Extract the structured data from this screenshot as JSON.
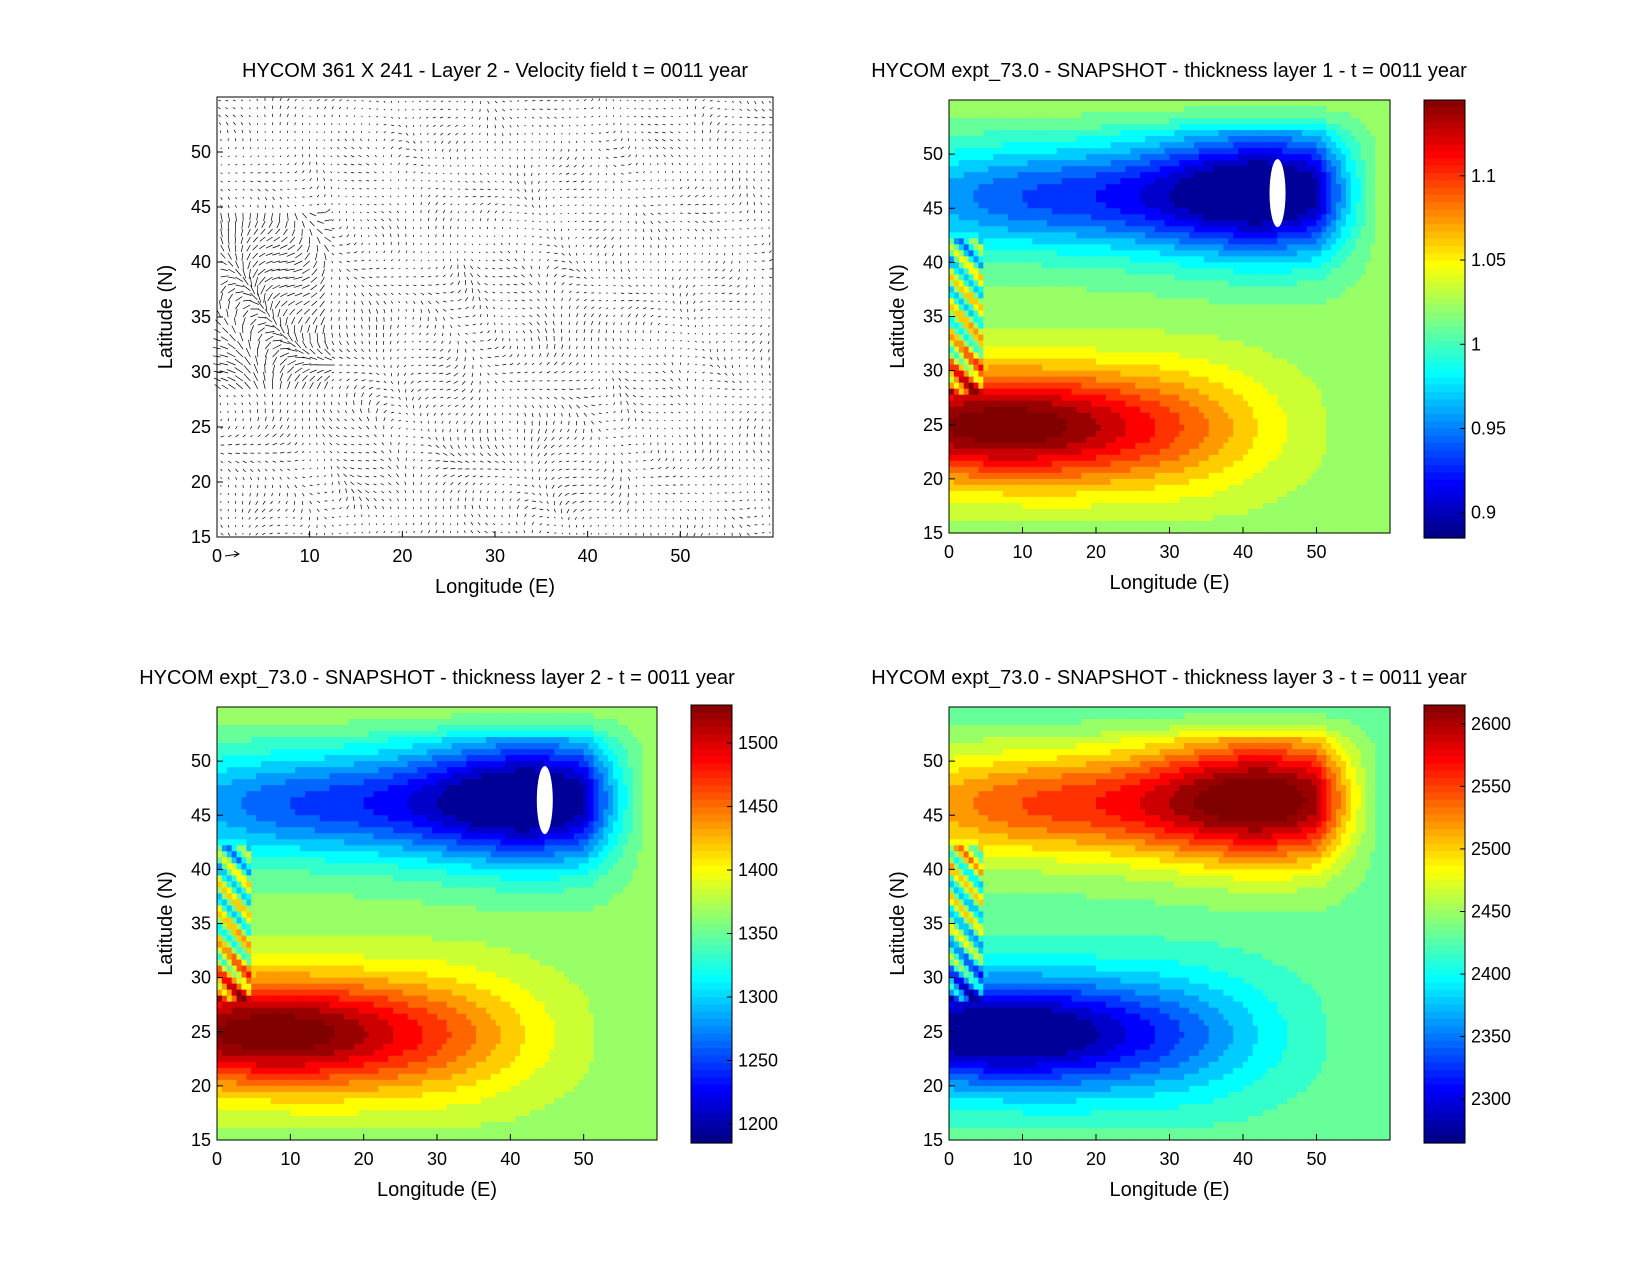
{
  "chart_data": [
    {
      "type": "quiver",
      "title": "HYCOM 361 X 241 - Layer 2 - Velocity field  t = 0011 year",
      "xlabel": "Longitude (E)",
      "ylabel": "Latitude (N)",
      "xlim": [
        0,
        60
      ],
      "ylim": [
        15,
        55
      ],
      "xticks": [
        0,
        10,
        20,
        30,
        40,
        50
      ],
      "yticks": [
        15,
        20,
        25,
        30,
        35,
        40,
        45,
        50
      ],
      "grid": false,
      "field": "velocity"
    },
    {
      "type": "contour",
      "title": "HYCOM expt_73.0 - SNAPSHOT - thickness layer 1 - t = 0011 year",
      "xlabel": "Longitude (E)",
      "ylabel": "Latitude (N)",
      "xlim": [
        0,
        60
      ],
      "ylim": [
        15,
        55
      ],
      "xticks": [
        0,
        10,
        20,
        30,
        40,
        50
      ],
      "yticks": [
        15,
        20,
        25,
        30,
        35,
        40,
        45,
        50
      ],
      "colorbar": {
        "colormap": "jet",
        "range": [
          0.885,
          1.145
        ],
        "ticks": [
          0.9,
          0.95,
          1,
          1.05,
          1.1
        ],
        "tick_labels": [
          "0.9",
          "0.95",
          "1",
          "1.05",
          "1.1"
        ]
      },
      "invert_field": false
    },
    {
      "type": "contour",
      "title": "HYCOM expt_73.0 - SNAPSHOT - thickness layer 2 - t = 0011 year",
      "xlabel": "Longitude (E)",
      "ylabel": "Latitude (N)",
      "xlim": [
        0,
        60
      ],
      "ylim": [
        15,
        55
      ],
      "xticks": [
        0,
        10,
        20,
        30,
        40,
        50
      ],
      "yticks": [
        15,
        20,
        25,
        30,
        35,
        40,
        45,
        50
      ],
      "colorbar": {
        "colormap": "jet",
        "range": [
          1185,
          1530
        ],
        "ticks": [
          1200,
          1250,
          1300,
          1350,
          1400,
          1450,
          1500
        ],
        "tick_labels": [
          "1200",
          "1250",
          "1300",
          "1350",
          "1400",
          "1450",
          "1500"
        ]
      },
      "invert_field": false
    },
    {
      "type": "contour",
      "title": "HYCOM expt_73.0 - SNAPSHOT - thickness layer 3 - t = 0011 year",
      "xlabel": "Longitude (E)",
      "ylabel": "Latitude (N)",
      "xlim": [
        0,
        60
      ],
      "ylim": [
        15,
        55
      ],
      "xticks": [
        0,
        10,
        20,
        30,
        40,
        50
      ],
      "yticks": [
        15,
        20,
        25,
        30,
        35,
        40,
        45,
        50
      ],
      "colorbar": {
        "colormap": "jet",
        "range": [
          2265,
          2615
        ],
        "ticks": [
          2300,
          2350,
          2400,
          2450,
          2500,
          2550,
          2600
        ],
        "tick_labels": [
          "2300",
          "2350",
          "2400",
          "2450",
          "2500",
          "2550",
          "2600"
        ]
      },
      "invert_field": true
    }
  ]
}
